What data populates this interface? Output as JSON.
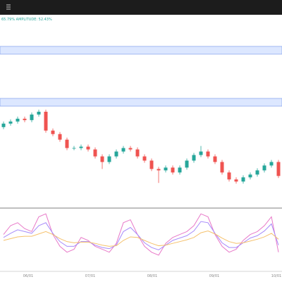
{
  "header": {
    "stats": "65.79%  AMPLITUDE: 52.43%"
  },
  "chart_data": {
    "type": "candlestick",
    "open": [
      120,
      125,
      128,
      132,
      130,
      138,
      142,
      115,
      110,
      102,
      90,
      90,
      92,
      88,
      78,
      70,
      78,
      85,
      90,
      88,
      78,
      72,
      60,
      58,
      62,
      55,
      62,
      72,
      80,
      85,
      78,
      70,
      55,
      45,
      42,
      48,
      52,
      58,
      65,
      70
    ],
    "high": [
      128,
      131,
      135,
      135,
      141,
      145,
      145,
      118,
      113,
      105,
      93,
      95,
      95,
      91,
      81,
      81,
      88,
      93,
      93,
      91,
      81,
      75,
      63,
      65,
      65,
      65,
      75,
      83,
      93,
      88,
      81,
      73,
      58,
      48,
      51,
      55,
      61,
      68,
      73,
      73
    ],
    "low": [
      117,
      122,
      125,
      127,
      127,
      135,
      112,
      107,
      99,
      87,
      87,
      87,
      85,
      75,
      60,
      67,
      75,
      82,
      85,
      75,
      69,
      57,
      40,
      55,
      52,
      52,
      59,
      69,
      77,
      75,
      67,
      52,
      42,
      39,
      39,
      45,
      49,
      55,
      62,
      47
    ],
    "close": [
      125,
      128,
      132,
      130,
      138,
      142,
      115,
      110,
      102,
      90,
      90,
      92,
      88,
      78,
      70,
      78,
      85,
      90,
      88,
      78,
      72,
      60,
      58,
      62,
      55,
      62,
      72,
      80,
      85,
      78,
      70,
      55,
      45,
      42,
      48,
      52,
      58,
      65,
      70,
      50
    ],
    "up_color": "#26a69a",
    "down_color": "#ef5350",
    "ylim": [
      5,
      150
    ],
    "indicator": {
      "ylim": [
        0,
        100
      ],
      "series": [
        {
          "color": "#e879c8",
          "values": [
            60,
            75,
            80,
            70,
            65,
            90,
            95,
            60,
            40,
            30,
            35,
            55,
            50,
            40,
            35,
            30,
            45,
            80,
            85,
            60,
            40,
            30,
            25,
            45,
            55,
            60,
            65,
            75,
            95,
            90,
            60,
            40,
            30,
            35,
            50,
            60,
            65,
            75,
            90,
            30
          ]
        },
        {
          "color": "#a78bfa",
          "values": [
            55,
            62,
            68,
            65,
            62,
            75,
            80,
            62,
            48,
            40,
            40,
            48,
            48,
            42,
            38,
            36,
            42,
            65,
            72,
            60,
            46,
            38,
            34,
            42,
            50,
            54,
            58,
            66,
            82,
            80,
            62,
            46,
            38,
            38,
            46,
            54,
            58,
            66,
            78,
            42
          ]
        },
        {
          "color": "#f5c16c",
          "values": [
            50,
            53,
            56,
            57,
            57,
            61,
            65,
            60,
            53,
            48,
            46,
            47,
            47,
            45,
            42,
            40,
            41,
            50,
            56,
            55,
            50,
            45,
            41,
            42,
            45,
            48,
            51,
            55,
            63,
            66,
            61,
            54,
            48,
            45,
            46,
            49,
            52,
            56,
            62,
            52
          ]
        }
      ]
    },
    "x_labels": [
      "06/01",
      "07/01",
      "08/01",
      "09/01",
      "10/01"
    ]
  }
}
